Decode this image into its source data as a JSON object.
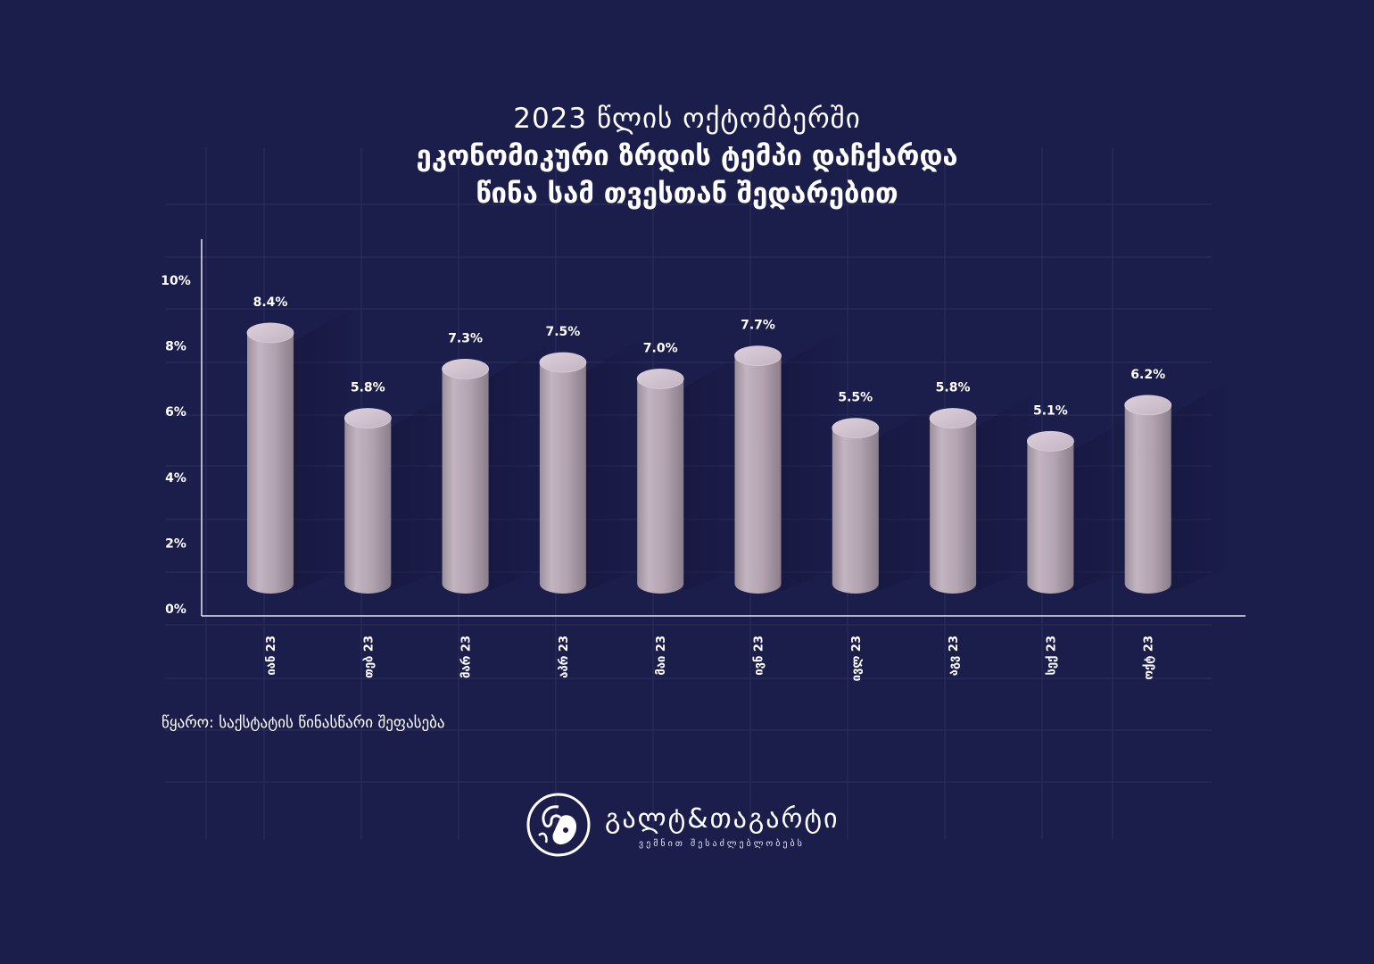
{
  "header": {
    "line1": "2023 წლის ოქტომბერში",
    "line2": "ეკონომიკური ზრდის ტემპი დაჩქარდა",
    "line3": "წინა სამ თვესთან შედარებით"
  },
  "chart_data": {
    "type": "bar",
    "categories": [
      "იან 23",
      "თებ 23",
      "მარ 23",
      "აპრ 23",
      "მაი 23",
      "ივნ 23",
      "ივლ 23",
      "აგვ 23",
      "სექ 23",
      "ოქტ 23"
    ],
    "values": [
      8.4,
      5.8,
      7.3,
      7.5,
      7.0,
      7.7,
      5.5,
      5.8,
      5.1,
      6.2
    ],
    "value_labels": [
      "8.4%",
      "5.8%",
      "7.3%",
      "7.5%",
      "7.0%",
      "7.7%",
      "5.5%",
      "5.8%",
      "5.1%",
      "6.2%"
    ],
    "y_ticks": [
      0,
      2,
      4,
      6,
      8,
      10
    ],
    "y_tick_labels": [
      "0%",
      "2%",
      "4%",
      "6%",
      "8%",
      "10%"
    ],
    "ylim": [
      0,
      10
    ],
    "bar_style": "3d-cylinder",
    "bar_color": "#b9a9b6",
    "grid": true,
    "legend": "none",
    "title": "",
    "xlabel": "",
    "ylabel": ""
  },
  "source": "წყარო: საქსტატის წინასწარი შეფასება",
  "brand": {
    "name": "გალტ&თაგარტი",
    "slogan": "ვემნით შესაძლებლობებს",
    "logo_icon": "ram-head-icon"
  },
  "colors": {
    "background": "#1b1d4a",
    "grid": "#2c2f5e",
    "bar": "#b9a9b6",
    "text": "#ffffff"
  }
}
